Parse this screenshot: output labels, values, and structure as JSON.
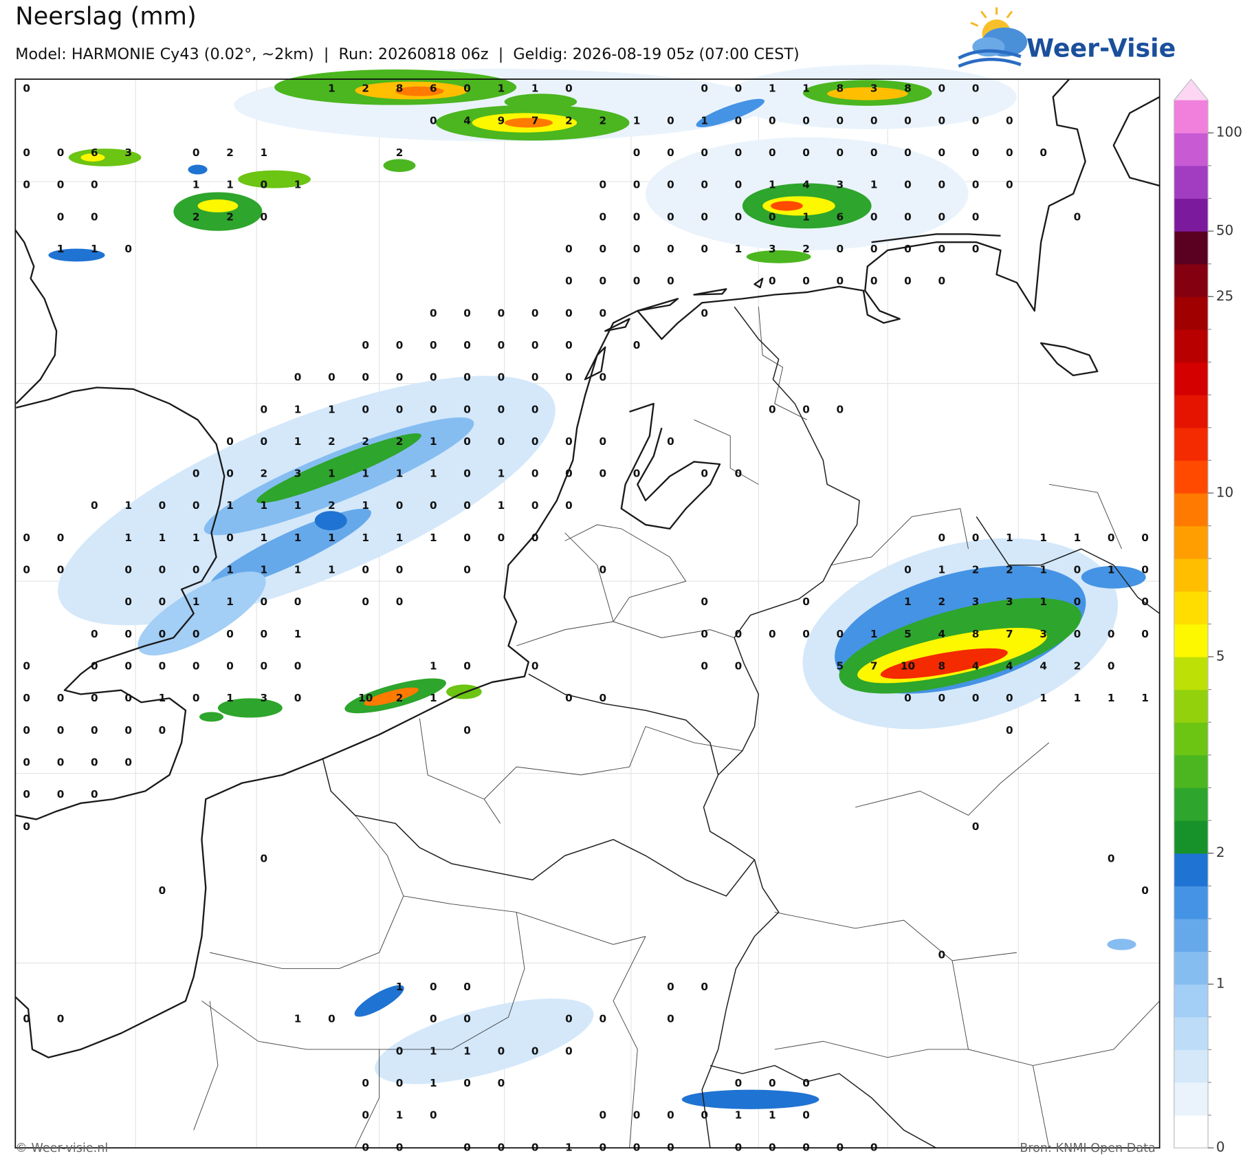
{
  "header": {
    "title": "Neerslag (mm)",
    "subtitle": "Model: HARMONIE Cy43 (0.02°, ~2km)  |  Run: 20260818 06z  |  Geldig: 2026-08-19 05z (07:00 CEST)"
  },
  "logo": {
    "text": "Weer-Visie"
  },
  "map": {
    "grid_values": [
      [
        0,
        null,
        null,
        null,
        null,
        null,
        null,
        null,
        null,
        1,
        2,
        8,
        6,
        0,
        1,
        1,
        0,
        null,
        null,
        null,
        0,
        0,
        1,
        1,
        8,
        3,
        8,
        0,
        0,
        null,
        null,
        null,
        null,
        null
      ],
      [
        null,
        null,
        null,
        null,
        null,
        null,
        null,
        null,
        null,
        null,
        null,
        null,
        0,
        4,
        9,
        7,
        2,
        2,
        1,
        0,
        1,
        0,
        0,
        0,
        0,
        0,
        0,
        0,
        0,
        0,
        null,
        null,
        null,
        null
      ],
      [
        0,
        0,
        6,
        3,
        null,
        0,
        2,
        1,
        null,
        null,
        null,
        2,
        null,
        null,
        null,
        null,
        null,
        null,
        0,
        0,
        0,
        0,
        0,
        0,
        0,
        0,
        0,
        0,
        0,
        0,
        0,
        null,
        null,
        null
      ],
      [
        0,
        0,
        0,
        null,
        null,
        1,
        1,
        0,
        1,
        null,
        null,
        null,
        null,
        null,
        null,
        null,
        null,
        0,
        0,
        0,
        0,
        0,
        1,
        4,
        3,
        1,
        0,
        0,
        0,
        0,
        null,
        null,
        null,
        null
      ],
      [
        null,
        0,
        0,
        null,
        null,
        2,
        2,
        0,
        null,
        null,
        null,
        null,
        null,
        null,
        null,
        null,
        null,
        0,
        0,
        0,
        0,
        0,
        0,
        1,
        6,
        0,
        0,
        0,
        0,
        null,
        null,
        0,
        null,
        null
      ],
      [
        null,
        1,
        1,
        0,
        null,
        null,
        null,
        null,
        null,
        null,
        null,
        null,
        null,
        null,
        null,
        null,
        0,
        0,
        0,
        0,
        0,
        1,
        3,
        2,
        0,
        0,
        0,
        0,
        0,
        null,
        null,
        null,
        null,
        null
      ],
      [
        null,
        null,
        null,
        null,
        null,
        null,
        null,
        null,
        null,
        null,
        null,
        null,
        null,
        null,
        null,
        null,
        0,
        0,
        0,
        0,
        null,
        null,
        0,
        0,
        0,
        0,
        0,
        0,
        null,
        null,
        null,
        null,
        null,
        null
      ],
      [
        null,
        null,
        null,
        null,
        null,
        null,
        null,
        null,
        null,
        null,
        null,
        null,
        0,
        0,
        0,
        0,
        0,
        0,
        null,
        null,
        0,
        null,
        null,
        null,
        null,
        null,
        null,
        null,
        null,
        null,
        null,
        null,
        null,
        null
      ],
      [
        null,
        null,
        null,
        null,
        null,
        null,
        null,
        null,
        null,
        null,
        0,
        0,
        0,
        0,
        0,
        0,
        0,
        null,
        0,
        null,
        null,
        null,
        null,
        null,
        null,
        null,
        null,
        null,
        null,
        null,
        null,
        null,
        null,
        null
      ],
      [
        null,
        null,
        null,
        null,
        null,
        null,
        null,
        null,
        0,
        0,
        0,
        0,
        0,
        0,
        0,
        0,
        0,
        0,
        null,
        null,
        null,
        null,
        null,
        null,
        null,
        null,
        null,
        null,
        null,
        null,
        null,
        null,
        null,
        null
      ],
      [
        null,
        null,
        null,
        null,
        null,
        null,
        null,
        0,
        1,
        1,
        0,
        0,
        0,
        0,
        0,
        0,
        null,
        null,
        null,
        null,
        null,
        null,
        0,
        0,
        0,
        null,
        null,
        null,
        null,
        null,
        null,
        null,
        null,
        null
      ],
      [
        null,
        null,
        null,
        null,
        null,
        null,
        0,
        0,
        1,
        2,
        2,
        2,
        1,
        0,
        0,
        0,
        0,
        0,
        null,
        0,
        null,
        null,
        null,
        null,
        null,
        null,
        null,
        null,
        null,
        null,
        null,
        null,
        null,
        null
      ],
      [
        null,
        null,
        null,
        null,
        null,
        0,
        0,
        2,
        3,
        1,
        1,
        1,
        1,
        0,
        1,
        0,
        0,
        0,
        0,
        null,
        0,
        0,
        null,
        null,
        null,
        null,
        null,
        null,
        null,
        null,
        null,
        null,
        null,
        null
      ],
      [
        null,
        null,
        0,
        1,
        0,
        0,
        1,
        1,
        1,
        2,
        1,
        0,
        0,
        0,
        1,
        0,
        0,
        null,
        null,
        null,
        null,
        null,
        null,
        null,
        null,
        null,
        null,
        null,
        null,
        null,
        null,
        null,
        null,
        null
      ],
      [
        0,
        0,
        null,
        1,
        1,
        1,
        0,
        1,
        1,
        1,
        1,
        1,
        1,
        0,
        0,
        0,
        null,
        null,
        null,
        null,
        null,
        null,
        null,
        null,
        null,
        null,
        null,
        0,
        0,
        1,
        1,
        1,
        0,
        0
      ],
      [
        0,
        0,
        null,
        0,
        0,
        0,
        1,
        1,
        1,
        1,
        0,
        0,
        null,
        0,
        null,
        null,
        null,
        0,
        null,
        null,
        null,
        null,
        null,
        null,
        null,
        null,
        0,
        1,
        2,
        2,
        1,
        0,
        1,
        0
      ],
      [
        null,
        null,
        null,
        0,
        0,
        1,
        1,
        0,
        0,
        null,
        0,
        0,
        null,
        null,
        null,
        null,
        null,
        null,
        null,
        null,
        0,
        null,
        null,
        0,
        null,
        null,
        1,
        2,
        3,
        3,
        1,
        0,
        null,
        0
      ],
      [
        null,
        null,
        0,
        0,
        0,
        0,
        0,
        0,
        1,
        null,
        null,
        null,
        null,
        null,
        null,
        null,
        null,
        null,
        null,
        null,
        0,
        0,
        0,
        0,
        0,
        1,
        5,
        4,
        8,
        7,
        3,
        0,
        0,
        0
      ],
      [
        0,
        null,
        0,
        0,
        0,
        0,
        0,
        0,
        0,
        null,
        null,
        null,
        1,
        0,
        null,
        0,
        null,
        null,
        null,
        null,
        0,
        0,
        null,
        null,
        5,
        7,
        10,
        8,
        4,
        4,
        4,
        2,
        0,
        null
      ],
      [
        0,
        0,
        0,
        0,
        1,
        0,
        1,
        3,
        0,
        null,
        10,
        2,
        1,
        null,
        null,
        null,
        0,
        0,
        null,
        null,
        null,
        null,
        null,
        null,
        null,
        null,
        0,
        0,
        0,
        0,
        1,
        1,
        1,
        1
      ],
      [
        0,
        0,
        0,
        0,
        0,
        null,
        null,
        null,
        null,
        null,
        null,
        null,
        null,
        0,
        null,
        null,
        null,
        null,
        null,
        null,
        null,
        null,
        null,
        null,
        null,
        null,
        null,
        null,
        null,
        0,
        null,
        null,
        null,
        null
      ],
      [
        0,
        0,
        0,
        0,
        null,
        null,
        null,
        null,
        null,
        null,
        null,
        null,
        null,
        null,
        null,
        null,
        null,
        null,
        null,
        null,
        null,
        null,
        null,
        null,
        null,
        null,
        null,
        null,
        null,
        null,
        null,
        null,
        null,
        null
      ],
      [
        0,
        0,
        0,
        null,
        null,
        null,
        null,
        null,
        null,
        null,
        null,
        null,
        null,
        null,
        null,
        null,
        null,
        null,
        null,
        null,
        null,
        null,
        null,
        null,
        null,
        null,
        null,
        null,
        null,
        null,
        null,
        null,
        null,
        null
      ],
      [
        0,
        null,
        null,
        null,
        null,
        null,
        null,
        null,
        null,
        null,
        null,
        null,
        null,
        null,
        null,
        null,
        null,
        null,
        null,
        null,
        null,
        null,
        null,
        null,
        null,
        null,
        null,
        null,
        0,
        null,
        null,
        null,
        null,
        null
      ],
      [
        null,
        null,
        null,
        null,
        null,
        null,
        null,
        0,
        null,
        null,
        null,
        null,
        null,
        null,
        null,
        null,
        null,
        null,
        null,
        null,
        null,
        null,
        null,
        null,
        null,
        null,
        null,
        null,
        null,
        null,
        null,
        null,
        0,
        null
      ],
      [
        null,
        null,
        null,
        null,
        0,
        null,
        null,
        null,
        null,
        null,
        null,
        null,
        null,
        null,
        null,
        null,
        null,
        null,
        null,
        null,
        null,
        null,
        null,
        null,
        null,
        null,
        null,
        null,
        null,
        null,
        null,
        null,
        null,
        0
      ],
      [
        null,
        null,
        null,
        null,
        null,
        null,
        null,
        null,
        null,
        null,
        null,
        null,
        null,
        null,
        null,
        null,
        null,
        null,
        null,
        null,
        null,
        null,
        null,
        null,
        null,
        null,
        null,
        null,
        null,
        null,
        null,
        null,
        null,
        null
      ],
      [
        null,
        null,
        null,
        null,
        null,
        null,
        null,
        null,
        null,
        null,
        null,
        null,
        null,
        null,
        null,
        null,
        null,
        null,
        null,
        null,
        null,
        null,
        null,
        null,
        null,
        null,
        null,
        0,
        null,
        null,
        null,
        null,
        null,
        null
      ],
      [
        null,
        null,
        null,
        null,
        null,
        null,
        null,
        null,
        null,
        null,
        null,
        1,
        0,
        0,
        null,
        null,
        null,
        null,
        null,
        0,
        0,
        null,
        null,
        null,
        null,
        null,
        null,
        null,
        null,
        null,
        null,
        null,
        null,
        null
      ],
      [
        0,
        0,
        null,
        null,
        null,
        null,
        null,
        null,
        1,
        0,
        null,
        null,
        0,
        0,
        null,
        null,
        0,
        0,
        null,
        0,
        null,
        null,
        null,
        null,
        null,
        null,
        null,
        null,
        null,
        null,
        null,
        null,
        null,
        null
      ],
      [
        null,
        null,
        null,
        null,
        null,
        null,
        null,
        null,
        null,
        null,
        null,
        0,
        1,
        1,
        0,
        0,
        0,
        null,
        null,
        null,
        null,
        null,
        null,
        null,
        null,
        null,
        null,
        null,
        null,
        null,
        null,
        null,
        null,
        null
      ],
      [
        null,
        null,
        null,
        null,
        null,
        null,
        null,
        null,
        null,
        null,
        0,
        0,
        1,
        0,
        0,
        null,
        null,
        null,
        null,
        null,
        null,
        0,
        0,
        0,
        null,
        null,
        null,
        null,
        null,
        null,
        null,
        null,
        null,
        null
      ],
      [
        null,
        null,
        null,
        null,
        null,
        null,
        null,
        null,
        null,
        null,
        0,
        1,
        0,
        null,
        null,
        null,
        null,
        0,
        0,
        0,
        0,
        1,
        1,
        0,
        null,
        null,
        null,
        null,
        null,
        null,
        null,
        null,
        null,
        null
      ],
      [
        null,
        null,
        null,
        null,
        null,
        null,
        null,
        null,
        null,
        null,
        0,
        0,
        null,
        0,
        0,
        0,
        1,
        0,
        0,
        0,
        null,
        0,
        0,
        0,
        0,
        0,
        null,
        null,
        null,
        null,
        null,
        null,
        null,
        null
      ]
    ]
  },
  "colorbar": {
    "colors": [
      "#ffffff",
      "#eaf3fc",
      "#d4e8fa",
      "#bcdcf8",
      "#a3cef5",
      "#86bdf1",
      "#66a9eb",
      "#4593e4",
      "#1f73d2",
      "#17922a",
      "#2ea52c",
      "#4bb61f",
      "#6cc413",
      "#93d10c",
      "#bde006",
      "#fdf700",
      "#ffdd00",
      "#ffbf00",
      "#ff9e00",
      "#ff7a00",
      "#ff4a00",
      "#f42a00",
      "#e41400",
      "#d40000",
      "#b80000",
      "#a00000",
      "#840010",
      "#5a0020",
      "#7c1a9e",
      "#a23cc0",
      "#c85ad4",
      "#f080dc"
    ],
    "over_color": "#fcd6f2",
    "ticks": [
      0,
      1,
      2,
      5,
      10,
      25,
      50,
      100
    ]
  },
  "footer": {
    "copyright": "© Weer-visie.nl",
    "source": "Bron: KNMI Open Data"
  }
}
